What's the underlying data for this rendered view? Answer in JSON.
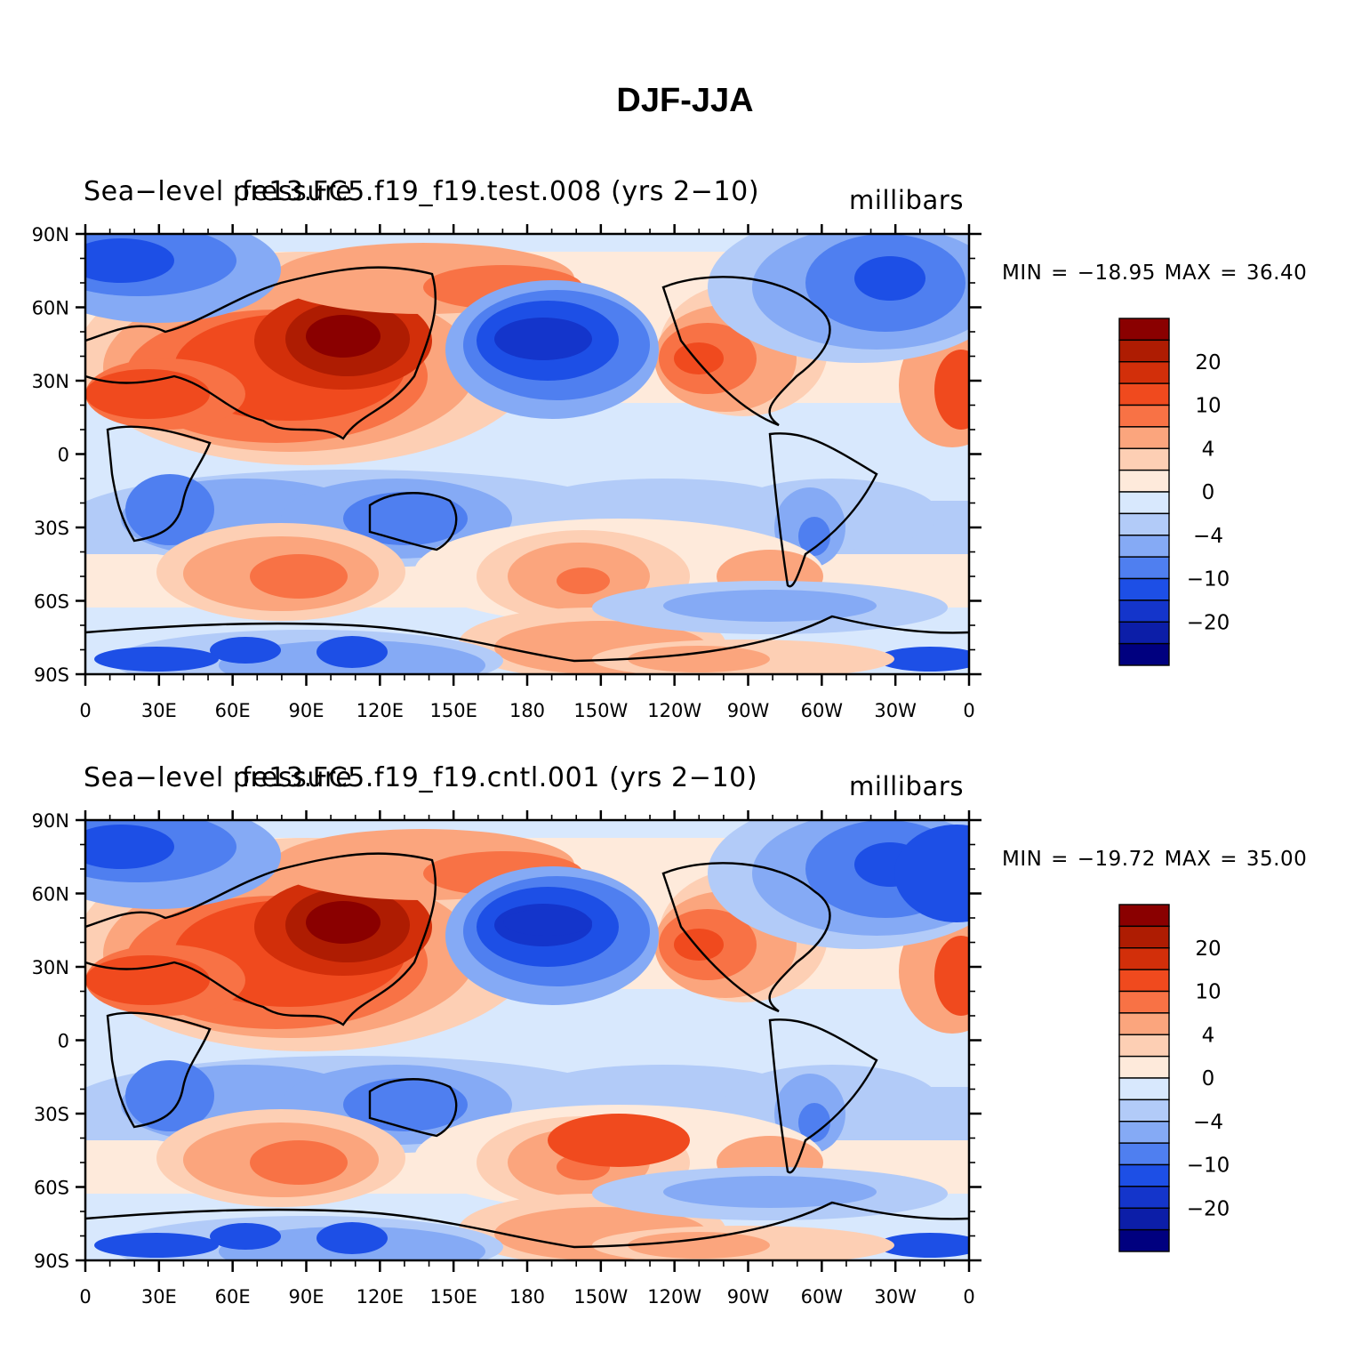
{
  "title": "DJF-JJA",
  "colors": {
    "levels": [
      "#00007f",
      "#0c1ea8",
      "#1435cb",
      "#1d4fe6",
      "#4f7ff0",
      "#85aaf5",
      "#b2cbf8",
      "#d8e8fd",
      "#feeadb",
      "#fdcfb4",
      "#fba57d",
      "#f87245",
      "#f04a1e",
      "#d22f0a",
      "#ae1c02",
      "#8a0000"
    ],
    "colorbar_top_to_bottom": [
      "#8a0000",
      "#ae1c02",
      "#d22f0a",
      "#f04a1e",
      "#f87245",
      "#fba57d",
      "#fdcfb4",
      "#feeadb",
      "#d8e8fd",
      "#b2cbf8",
      "#85aaf5",
      "#4f7ff0",
      "#1d4fe6",
      "#1435cb",
      "#0c1ea8",
      "#00007f"
    ]
  },
  "axes": {
    "lat_labels": [
      "90N",
      "60N",
      "30N",
      "0",
      "30S",
      "60S",
      "90S"
    ],
    "lon_labels": [
      "0",
      "30E",
      "60E",
      "90E",
      "120E",
      "150E",
      "180",
      "150W",
      "120W",
      "90W",
      "60W",
      "30W",
      "0"
    ]
  },
  "colorbar_labels": [
    "20",
    "10",
    "4",
    "0",
    "−4",
    "−10",
    "−20"
  ],
  "panels": [
    {
      "left_string": "Sea−level pressure",
      "center_string": "fe13.FC5.f19_f19.test.008 (yrs 2−10)",
      "units": "millibars",
      "minmax": "MIN = −18.95 MAX =  36.40"
    },
    {
      "left_string": "Sea−level pressure",
      "center_string": "fe13.FC5.f19_f19.cntl.001 (yrs 2−10)",
      "units": "millibars",
      "minmax": "MIN = −19.72 MAX =  35.00"
    }
  ]
}
